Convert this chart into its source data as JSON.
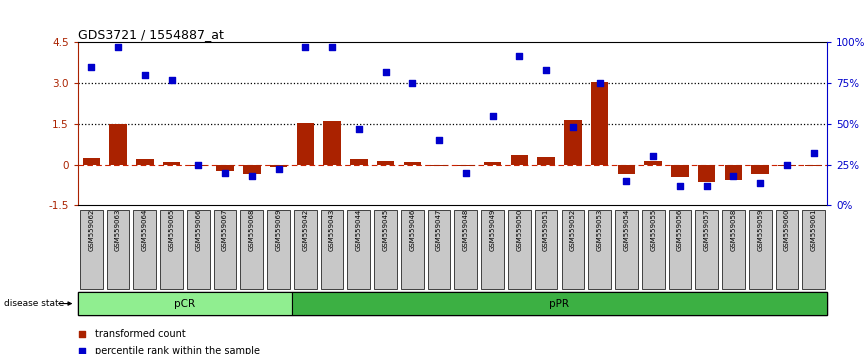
{
  "title": "GDS3721 / 1554887_at",
  "samples": [
    "GSM559062",
    "GSM559063",
    "GSM559064",
    "GSM559065",
    "GSM559066",
    "GSM559067",
    "GSM559068",
    "GSM559069",
    "GSM559042",
    "GSM559043",
    "GSM559044",
    "GSM559045",
    "GSM559046",
    "GSM559047",
    "GSM559048",
    "GSM559049",
    "GSM559050",
    "GSM559051",
    "GSM559052",
    "GSM559053",
    "GSM559054",
    "GSM559055",
    "GSM559056",
    "GSM559057",
    "GSM559058",
    "GSM559059",
    "GSM559060",
    "GSM559061"
  ],
  "bar_values": [
    0.25,
    1.5,
    0.2,
    0.1,
    -0.04,
    -0.25,
    -0.35,
    -0.1,
    1.55,
    1.6,
    0.2,
    0.12,
    0.1,
    -0.04,
    -0.04,
    0.1,
    0.35,
    0.28,
    1.65,
    3.05,
    -0.35,
    0.12,
    -0.45,
    -0.65,
    -0.55,
    -0.35,
    -0.05,
    -0.05
  ],
  "dot_values": [
    85,
    97,
    80,
    77,
    25,
    20,
    18,
    22,
    97,
    97,
    47,
    82,
    75,
    40,
    20,
    55,
    92,
    83,
    48,
    75,
    15,
    30,
    12,
    12,
    18,
    14,
    25,
    32
  ],
  "pCR_count": 8,
  "pPR_count": 20,
  "bar_color": "#AA2200",
  "dot_color": "#0000CC",
  "bar_zero_line_color": "#CC2200",
  "hline1_val": 1.5,
  "hline2_val": 3.0,
  "ylim": [
    -1.5,
    4.5
  ],
  "y_ticks_left": [
    -1.5,
    0,
    1.5,
    3.0,
    4.5
  ],
  "y_ticks_right": [
    0,
    25,
    50,
    75,
    100
  ],
  "right_tick_labels": [
    "0%",
    "25%",
    "50%",
    "75%",
    "100%"
  ],
  "pCR_color": "#90EE90",
  "pPR_color": "#3CB043",
  "disease_state_label": "disease state",
  "legend_bar_label": "transformed count",
  "legend_dot_label": "percentile rank within the sample",
  "sample_bg_color": "#C8C8C8",
  "bg_color": "#FFFFFF"
}
